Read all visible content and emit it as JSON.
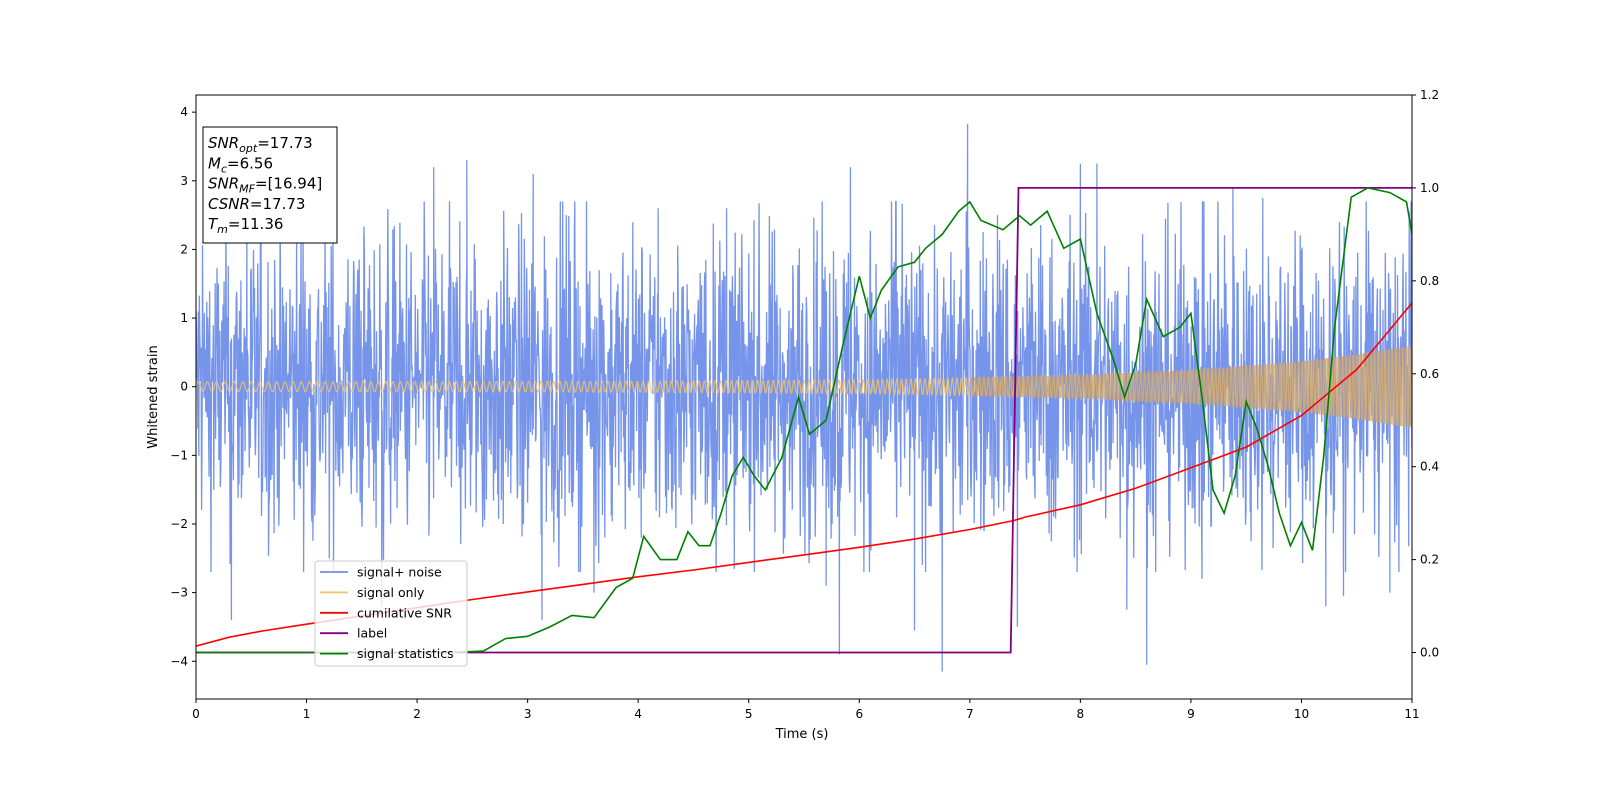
{
  "chart_data": {
    "type": "line",
    "xlabel": "Time (s)",
    "ylabel": "Whitened strain",
    "xlim": [
      0,
      11
    ],
    "ylim": [
      -4.55,
      4.25
    ],
    "y2lim": [
      -0.1,
      1.2
    ],
    "xticks": [
      0,
      1,
      2,
      3,
      4,
      5,
      6,
      7,
      8,
      9,
      10,
      11
    ],
    "yticks": [
      -4,
      -3,
      -2,
      -1,
      0,
      1,
      2,
      3,
      4
    ],
    "y2ticks": [
      0.0,
      0.2,
      0.4,
      0.6,
      0.8,
      1.0,
      1.2
    ],
    "grid": false,
    "legend_position": "lower-left",
    "colors": {
      "signal_noise": "#6f8ee8",
      "signal_only": "#f5c26b",
      "signal_only_overlap": "#b99b7a",
      "cumulative_snr": "#ff0000",
      "label": "#800080",
      "signal_statistics": "#008000"
    },
    "info_box": [
      {
        "base": "SNR",
        "sub": "opt",
        "value": "=17.73"
      },
      {
        "base": "M",
        "sub": "c",
        "value": "=6.56"
      },
      {
        "base": "SNR",
        "sub": "MF",
        "value": "=[16.94]"
      },
      {
        "base": "CSNR",
        "sub": "",
        "value": "=17.73"
      },
      {
        "base": "T",
        "sub": "m",
        "value": "=11.36"
      }
    ],
    "series": [
      {
        "name": "signal+ noise",
        "axis": "left",
        "description": "whitened noise, envelope approx ±2 with spikes",
        "spikes": [
          {
            "x": 0.32,
            "y": -3.4
          },
          {
            "x": 0.46,
            "y": 2.5
          },
          {
            "x": 1.68,
            "y": -3.2
          },
          {
            "x": 2.15,
            "y": 3.2
          },
          {
            "x": 2.45,
            "y": 3.3
          },
          {
            "x": 3.05,
            "y": 3.1
          },
          {
            "x": 3.13,
            "y": -3.4
          },
          {
            "x": 3.35,
            "y": 2.5
          },
          {
            "x": 3.6,
            "y": -3.0
          },
          {
            "x": 4.18,
            "y": 2.6
          },
          {
            "x": 5.7,
            "y": -2.9
          },
          {
            "x": 5.82,
            "y": -3.9
          },
          {
            "x": 5.92,
            "y": 3.2
          },
          {
            "x": 6.5,
            "y": -3.55
          },
          {
            "x": 6.75,
            "y": -4.15
          },
          {
            "x": 6.98,
            "y": 3.83
          },
          {
            "x": 7.25,
            "y": 2.5
          },
          {
            "x": 7.43,
            "y": -3.5
          },
          {
            "x": 8.0,
            "y": 3.25
          },
          {
            "x": 8.15,
            "y": 3.25
          },
          {
            "x": 8.42,
            "y": -3.25
          },
          {
            "x": 8.6,
            "y": -4.05
          },
          {
            "x": 9.38,
            "y": 2.9
          },
          {
            "x": 9.65,
            "y": 2.75
          },
          {
            "x": 10.22,
            "y": -3.2
          },
          {
            "x": 10.38,
            "y": -3.05
          },
          {
            "x": 10.8,
            "y": -3.0
          },
          {
            "x": 0.95,
            "y": 2.3
          },
          {
            "x": 4.8,
            "y": 2.6
          },
          {
            "x": 9.1,
            "y": -2.8
          }
        ]
      },
      {
        "name": "signal only",
        "axis": "left",
        "description": "chirp with amplitude growing from ~0.07 to ~0.6",
        "envelope": [
          [
            0,
            0.07
          ],
          [
            4,
            0.08
          ],
          [
            6,
            0.1
          ],
          [
            7,
            0.13
          ],
          [
            8,
            0.17
          ],
          [
            9,
            0.24
          ],
          [
            10,
            0.37
          ],
          [
            10.5,
            0.47
          ],
          [
            11,
            0.6
          ]
        ]
      },
      {
        "name": "cumilative SNR",
        "axis": "left",
        "x": [
          0,
          0.3,
          0.6,
          1,
          1.5,
          2,
          2.5,
          3,
          3.5,
          4,
          4.5,
          5,
          5.5,
          6,
          6.5,
          7,
          7.4,
          7.5,
          8,
          8.5,
          9,
          9.5,
          10,
          10.5,
          11
        ],
        "y": [
          -3.78,
          -3.65,
          -3.56,
          -3.46,
          -3.34,
          -3.22,
          -3.1,
          -2.99,
          -2.88,
          -2.77,
          -2.67,
          -2.56,
          -2.45,
          -2.34,
          -2.22,
          -2.08,
          -1.95,
          -1.9,
          -1.72,
          -1.48,
          -1.18,
          -0.88,
          -0.42,
          0.25,
          1.22
        ]
      },
      {
        "name": "label",
        "axis": "right",
        "x": [
          0,
          7.37,
          7.44,
          11
        ],
        "y": [
          0,
          0,
          1,
          1
        ]
      },
      {
        "name": "signal statistics",
        "axis": "right",
        "x": [
          0,
          0.5,
          1,
          1.5,
          2,
          2.3,
          2.6,
          2.8,
          3.0,
          3.2,
          3.4,
          3.6,
          3.8,
          3.95,
          4.05,
          4.2,
          4.35,
          4.45,
          4.55,
          4.65,
          4.75,
          4.85,
          4.95,
          5.05,
          5.15,
          5.3,
          5.45,
          5.55,
          5.7,
          5.85,
          6.0,
          6.1,
          6.2,
          6.35,
          6.5,
          6.6,
          6.75,
          6.9,
          7.0,
          7.1,
          7.3,
          7.45,
          7.55,
          7.7,
          7.85,
          8.0,
          8.15,
          8.3,
          8.4,
          8.5,
          8.6,
          8.75,
          8.9,
          9.0,
          9.1,
          9.2,
          9.3,
          9.4,
          9.5,
          9.6,
          9.7,
          9.8,
          9.9,
          10.0,
          10.1,
          10.2,
          10.3,
          10.45,
          10.6,
          10.8,
          10.95,
          11.0
        ],
        "y": [
          0.0,
          0.0,
          0.0,
          0.0,
          0.0,
          0.0,
          0.003,
          0.03,
          0.035,
          0.055,
          0.08,
          0.075,
          0.14,
          0.16,
          0.25,
          0.2,
          0.2,
          0.26,
          0.23,
          0.23,
          0.3,
          0.38,
          0.42,
          0.38,
          0.35,
          0.42,
          0.55,
          0.47,
          0.5,
          0.66,
          0.81,
          0.72,
          0.78,
          0.83,
          0.84,
          0.87,
          0.9,
          0.95,
          0.97,
          0.93,
          0.91,
          0.94,
          0.92,
          0.95,
          0.87,
          0.89,
          0.73,
          0.63,
          0.55,
          0.62,
          0.76,
          0.68,
          0.7,
          0.73,
          0.55,
          0.35,
          0.3,
          0.38,
          0.54,
          0.48,
          0.4,
          0.3,
          0.23,
          0.28,
          0.22,
          0.42,
          0.7,
          0.98,
          1.0,
          0.99,
          0.97,
          0.9
        ]
      }
    ]
  }
}
